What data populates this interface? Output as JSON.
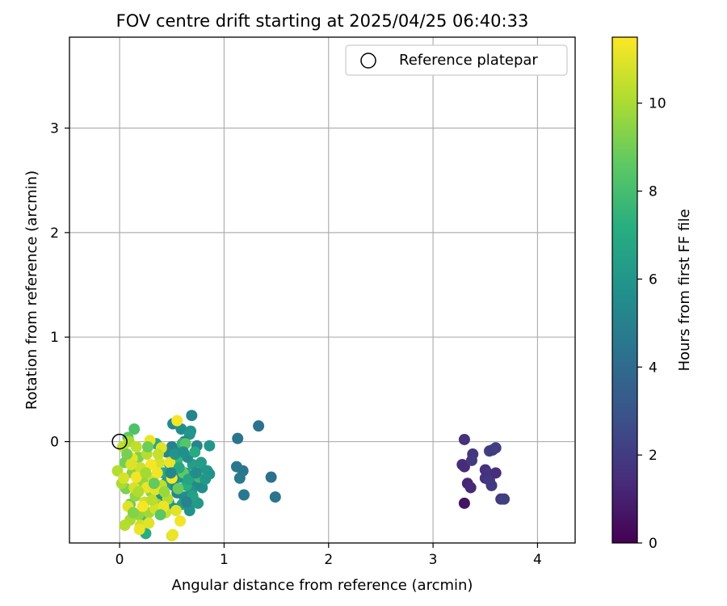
{
  "chart_data": {
    "type": "scatter",
    "title": "FOV centre drift starting at 2025/04/25 06:40:33",
    "xlabel": "Angular distance from reference (arcmin)",
    "ylabel": "Rotation from reference (arcmin)",
    "xlim": [
      -0.48,
      4.36
    ],
    "ylim": [
      -0.97,
      3.87
    ],
    "xticks": [
      0,
      1,
      2,
      3,
      4
    ],
    "yticks": [
      0,
      1,
      2,
      3
    ],
    "grid": true,
    "legend": {
      "location": "top-right",
      "entries": [
        "Reference platepar"
      ]
    },
    "reference_point": {
      "x": 0,
      "y": 0,
      "label": "Reference platepar"
    },
    "colorbar": {
      "label": "Hours from first FF file",
      "range": [
        0,
        11.5
      ],
      "ticks": [
        0,
        2,
        4,
        6,
        8,
        10
      ],
      "colormap": "viridis"
    },
    "points": [
      {
        "x": 3.3,
        "y": 0.02,
        "c": 1.6
      },
      {
        "x": 3.28,
        "y": -0.22,
        "c": 1.5
      },
      {
        "x": 3.3,
        "y": -0.24,
        "c": 1.4
      },
      {
        "x": 3.38,
        "y": -0.12,
        "c": 1.8
      },
      {
        "x": 3.37,
        "y": -0.18,
        "c": 1.9
      },
      {
        "x": 3.33,
        "y": -0.4,
        "c": 1.2
      },
      {
        "x": 3.36,
        "y": -0.44,
        "c": 1.3
      },
      {
        "x": 3.3,
        "y": -0.59,
        "c": 0.6
      },
      {
        "x": 3.5,
        "y": -0.27,
        "c": 1.5
      },
      {
        "x": 3.52,
        "y": -0.3,
        "c": 1.7
      },
      {
        "x": 3.5,
        "y": -0.35,
        "c": 1.6
      },
      {
        "x": 3.54,
        "y": -0.37,
        "c": 1.8
      },
      {
        "x": 3.56,
        "y": -0.42,
        "c": 1.9
      },
      {
        "x": 3.54,
        "y": -0.09,
        "c": 2.2
      },
      {
        "x": 3.57,
        "y": -0.08,
        "c": 2.0
      },
      {
        "x": 3.6,
        "y": -0.06,
        "c": 2.1
      },
      {
        "x": 3.6,
        "y": -0.3,
        "c": 1.5
      },
      {
        "x": 3.65,
        "y": -0.55,
        "c": 1.9
      },
      {
        "x": 3.68,
        "y": -0.55,
        "c": 2.1
      },
      {
        "x": 1.33,
        "y": 0.15,
        "c": 4.3
      },
      {
        "x": 1.13,
        "y": 0.03,
        "c": 4.4
      },
      {
        "x": 1.12,
        "y": -0.24,
        "c": 4.6
      },
      {
        "x": 1.18,
        "y": -0.28,
        "c": 4.5
      },
      {
        "x": 1.15,
        "y": -0.35,
        "c": 4.7
      },
      {
        "x": 1.19,
        "y": -0.51,
        "c": 4.6
      },
      {
        "x": 1.45,
        "y": -0.34,
        "c": 4.2
      },
      {
        "x": 1.49,
        "y": -0.53,
        "c": 4.4
      },
      {
        "x": 0.69,
        "y": 0.25,
        "c": 5.2
      },
      {
        "x": 0.51,
        "y": 0.17,
        "c": 5.4
      },
      {
        "x": 0.59,
        "y": 0.12,
        "c": 5.6
      },
      {
        "x": 0.68,
        "y": 0.1,
        "c": 5.8
      },
      {
        "x": 0.67,
        "y": 0.07,
        "c": 6.0
      },
      {
        "x": 0.62,
        "y": 0.0,
        "c": 5.0
      },
      {
        "x": 0.74,
        "y": -0.04,
        "c": 5.2
      },
      {
        "x": 0.86,
        "y": -0.04,
        "c": 6.0
      },
      {
        "x": 0.84,
        "y": -0.28,
        "c": 6.2
      },
      {
        "x": 0.86,
        "y": -0.31,
        "c": 5.8
      },
      {
        "x": 0.8,
        "y": -0.27,
        "c": 6.0
      },
      {
        "x": 0.79,
        "y": -0.44,
        "c": 5.6
      },
      {
        "x": 0.74,
        "y": -0.39,
        "c": 5.4
      },
      {
        "x": 0.72,
        "y": -0.57,
        "c": 6.4
      },
      {
        "x": 0.75,
        "y": -0.59,
        "c": 6.2
      },
      {
        "x": 0.69,
        "y": -0.47,
        "c": 5.8
      },
      {
        "x": 0.62,
        "y": -0.53,
        "c": 5.6
      },
      {
        "x": 0.6,
        "y": -0.6,
        "c": 6.6
      },
      {
        "x": 0.55,
        "y": -0.49,
        "c": 5.2
      },
      {
        "x": 0.52,
        "y": -0.42,
        "c": 5.4
      },
      {
        "x": 0.58,
        "y": -0.34,
        "c": 5.8
      },
      {
        "x": 0.63,
        "y": -0.3,
        "c": 6.0
      },
      {
        "x": 0.7,
        "y": -0.22,
        "c": 6.4
      },
      {
        "x": 0.65,
        "y": -0.15,
        "c": 5.6
      },
      {
        "x": 0.57,
        "y": -0.08,
        "c": 5.2
      },
      {
        "x": 0.5,
        "y": -0.05,
        "c": 5.0
      },
      {
        "x": 0.45,
        "y": -0.1,
        "c": 5.4
      },
      {
        "x": 0.48,
        "y": -0.22,
        "c": 6.6
      },
      {
        "x": 0.42,
        "y": -0.3,
        "c": 6.8
      },
      {
        "x": 0.44,
        "y": -0.4,
        "c": 6.2
      },
      {
        "x": 0.4,
        "y": -0.52,
        "c": 5.8
      },
      {
        "x": 0.47,
        "y": -0.58,
        "c": 6.4
      },
      {
        "x": 0.53,
        "y": -0.64,
        "c": 6.0
      },
      {
        "x": 0.67,
        "y": -0.66,
        "c": 5.8
      },
      {
        "x": 0.35,
        "y": -0.02,
        "c": 7.0
      },
      {
        "x": 0.6,
        "y": -0.02,
        "c": 7.4
      },
      {
        "x": 0.72,
        "y": -0.1,
        "c": 7.0
      },
      {
        "x": 0.64,
        "y": -0.42,
        "c": 7.2
      },
      {
        "x": 0.55,
        "y": -0.18,
        "c": 7.6
      },
      {
        "x": 0.76,
        "y": -0.34,
        "c": 7.8
      },
      {
        "x": 0.61,
        "y": -0.3,
        "c": 8.6
      },
      {
        "x": 0.63,
        "y": -0.02,
        "c": 8.4
      },
      {
        "x": 0.56,
        "y": -0.45,
        "c": 8.8
      },
      {
        "x": 0.25,
        "y": -0.88,
        "c": 7.2
      },
      {
        "x": 0.23,
        "y": -0.74,
        "c": 8.0
      },
      {
        "x": 0.14,
        "y": 0.12,
        "c": 8.2
      },
      {
        "x": 0.08,
        "y": 0.04,
        "c": 8.6
      },
      {
        "x": 0.1,
        "y": -0.6,
        "c": 8.8
      },
      {
        "x": 0.05,
        "y": -0.2,
        "c": 9.0
      },
      {
        "x": 0.06,
        "y": -0.45,
        "c": 9.2
      },
      {
        "x": 0.12,
        "y": -0.3,
        "c": 9.4
      },
      {
        "x": 0.18,
        "y": -0.15,
        "c": 9.2
      },
      {
        "x": 0.22,
        "y": -0.38,
        "c": 9.6
      },
      {
        "x": 0.15,
        "y": -0.52,
        "c": 9.6
      },
      {
        "x": 0.3,
        "y": -0.48,
        "c": 9.4
      },
      {
        "x": 0.36,
        "y": -0.6,
        "c": 9.8
      },
      {
        "x": 0.28,
        "y": -0.68,
        "c": 9.8
      },
      {
        "x": 0.18,
        "y": -0.7,
        "c": 9.6
      },
      {
        "x": 0.1,
        "y": -0.75,
        "c": 10.0
      },
      {
        "x": 0.05,
        "y": -0.8,
        "c": 10.2
      },
      {
        "x": 0.02,
        "y": -0.4,
        "c": 10.0
      },
      {
        "x": -0.02,
        "y": -0.28,
        "c": 10.2
      },
      {
        "x": 0.03,
        "y": -0.05,
        "c": 10.4
      },
      {
        "x": 0.09,
        "y": 0.0,
        "c": 10.0
      },
      {
        "x": 0.16,
        "y": -0.05,
        "c": 10.4
      },
      {
        "x": 0.2,
        "y": -0.25,
        "c": 10.6
      },
      {
        "x": 0.26,
        "y": -0.12,
        "c": 10.2
      },
      {
        "x": 0.32,
        "y": -0.35,
        "c": 10.6
      },
      {
        "x": 0.38,
        "y": -0.2,
        "c": 10.8
      },
      {
        "x": 0.4,
        "y": -0.42,
        "c": 10.4
      },
      {
        "x": 0.46,
        "y": -0.55,
        "c": 10.2
      },
      {
        "x": 0.44,
        "y": -0.68,
        "c": 10.6
      },
      {
        "x": 0.34,
        "y": -0.64,
        "c": 10.8
      },
      {
        "x": 0.24,
        "y": -0.58,
        "c": 10.6
      },
      {
        "x": 0.14,
        "y": -0.44,
        "c": 10.8
      },
      {
        "x": 0.08,
        "y": -0.62,
        "c": 11.0
      },
      {
        "x": 0.2,
        "y": -0.8,
        "c": 10.6
      },
      {
        "x": 0.28,
        "y": -0.78,
        "c": 11.0
      },
      {
        "x": 0.19,
        "y": -0.84,
        "c": 11.2
      },
      {
        "x": 0.5,
        "y": -0.9,
        "c": 10.8
      },
      {
        "x": 0.51,
        "y": -0.89,
        "c": 11.2
      },
      {
        "x": 0.55,
        "y": 0.2,
        "c": 11.4
      },
      {
        "x": 0.29,
        "y": 0.01,
        "c": 11.2
      },
      {
        "x": 0.4,
        "y": -0.06,
        "c": 11.0
      },
      {
        "x": 0.48,
        "y": -0.2,
        "c": 11.2
      },
      {
        "x": 0.5,
        "y": -0.35,
        "c": 11.4
      },
      {
        "x": 0.54,
        "y": -0.66,
        "c": 11.0
      },
      {
        "x": 0.58,
        "y": -0.76,
        "c": 11.3
      },
      {
        "x": 0.36,
        "y": -0.3,
        "c": 11.3
      },
      {
        "x": 0.3,
        "y": -0.22,
        "c": 11.4
      },
      {
        "x": 0.26,
        "y": -0.44,
        "c": 11.2
      },
      {
        "x": 0.16,
        "y": -0.34,
        "c": 11.3
      },
      {
        "x": 0.12,
        "y": -0.16,
        "c": 11.1
      },
      {
        "x": 0.22,
        "y": -0.62,
        "c": 11.4
      },
      {
        "x": 0.42,
        "y": -0.62,
        "c": 11.2
      },
      {
        "x": 0.34,
        "y": -0.46,
        "c": 11.0
      },
      {
        "x": 0.04,
        "y": -0.35,
        "c": 10.8
      },
      {
        "x": 0.11,
        "y": -0.22,
        "c": 10.9
      },
      {
        "x": 0.18,
        "y": -0.48,
        "c": 10.1
      },
      {
        "x": 0.25,
        "y": -0.3,
        "c": 9.9
      },
      {
        "x": 0.31,
        "y": -0.56,
        "c": 10.3
      },
      {
        "x": 0.37,
        "y": -0.12,
        "c": 10.5
      },
      {
        "x": 0.43,
        "y": -0.48,
        "c": 9.7
      },
      {
        "x": 0.13,
        "y": -0.68,
        "c": 9.3
      },
      {
        "x": 0.07,
        "y": -0.12,
        "c": 9.1
      },
      {
        "x": 0.27,
        "y": -0.05,
        "c": 8.9
      },
      {
        "x": 0.33,
        "y": -0.4,
        "c": 8.7
      },
      {
        "x": 0.39,
        "y": -0.7,
        "c": 8.5
      },
      {
        "x": 0.57,
        "y": -0.25,
        "c": 6.9
      },
      {
        "x": 0.66,
        "y": -0.36,
        "c": 6.7
      },
      {
        "x": 0.7,
        "y": -0.52,
        "c": 6.5
      },
      {
        "x": 0.78,
        "y": -0.2,
        "c": 6.3
      },
      {
        "x": 0.82,
        "y": -0.36,
        "c": 6.1
      },
      {
        "x": 0.53,
        "y": -0.12,
        "c": 5.9
      },
      {
        "x": 0.61,
        "y": -0.1,
        "c": 5.7
      },
      {
        "x": 0.73,
        "y": -0.3,
        "c": 5.5
      },
      {
        "x": 0.49,
        "y": -0.3,
        "c": 5.3
      },
      {
        "x": 0.64,
        "y": -0.58,
        "c": 5.1
      }
    ]
  }
}
